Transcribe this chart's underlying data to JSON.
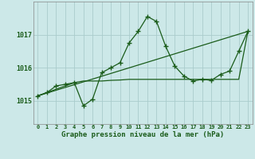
{
  "background_color": "#cce8e8",
  "grid_color": "#aacccc",
  "line_color": "#1a5c1a",
  "marker_color": "#1a5c1a",
  "title": "Graphe pression niveau de la mer (hPa)",
  "ylabel_ticks": [
    1015,
    1016,
    1017
  ],
  "xlim": [
    -0.5,
    23.5
  ],
  "ylim": [
    1014.3,
    1018.0
  ],
  "x_ticks": [
    0,
    1,
    2,
    3,
    4,
    5,
    6,
    7,
    8,
    9,
    10,
    11,
    12,
    13,
    14,
    15,
    16,
    17,
    18,
    19,
    20,
    21,
    22,
    23
  ],
  "series1_x": [
    0,
    1,
    2,
    3,
    4,
    5,
    6,
    7,
    8,
    9,
    10,
    11,
    12,
    13,
    14,
    15,
    16,
    17,
    18,
    19,
    20,
    21,
    22,
    23
  ],
  "series1_y": [
    1015.15,
    1015.25,
    1015.45,
    1015.5,
    1015.55,
    1014.85,
    1015.05,
    1015.85,
    1016.0,
    1016.15,
    1016.75,
    1017.1,
    1017.55,
    1017.4,
    1016.65,
    1016.05,
    1015.75,
    1015.6,
    1015.65,
    1015.62,
    1015.8,
    1015.9,
    1016.5,
    1017.1
  ],
  "series2_x": [
    0,
    23
  ],
  "series2_y": [
    1015.15,
    1017.1
  ],
  "series3_x": [
    0,
    4,
    5,
    6,
    7,
    8,
    9,
    10,
    11,
    12,
    13,
    14,
    15,
    16,
    17,
    18,
    19,
    20,
    21,
    22,
    23
  ],
  "series3_y": [
    1015.15,
    1015.55,
    1015.6,
    1015.6,
    1015.6,
    1015.62,
    1015.63,
    1015.65,
    1015.65,
    1015.65,
    1015.65,
    1015.65,
    1015.65,
    1015.65,
    1015.65,
    1015.65,
    1015.65,
    1015.65,
    1015.65,
    1015.65,
    1017.1
  ]
}
